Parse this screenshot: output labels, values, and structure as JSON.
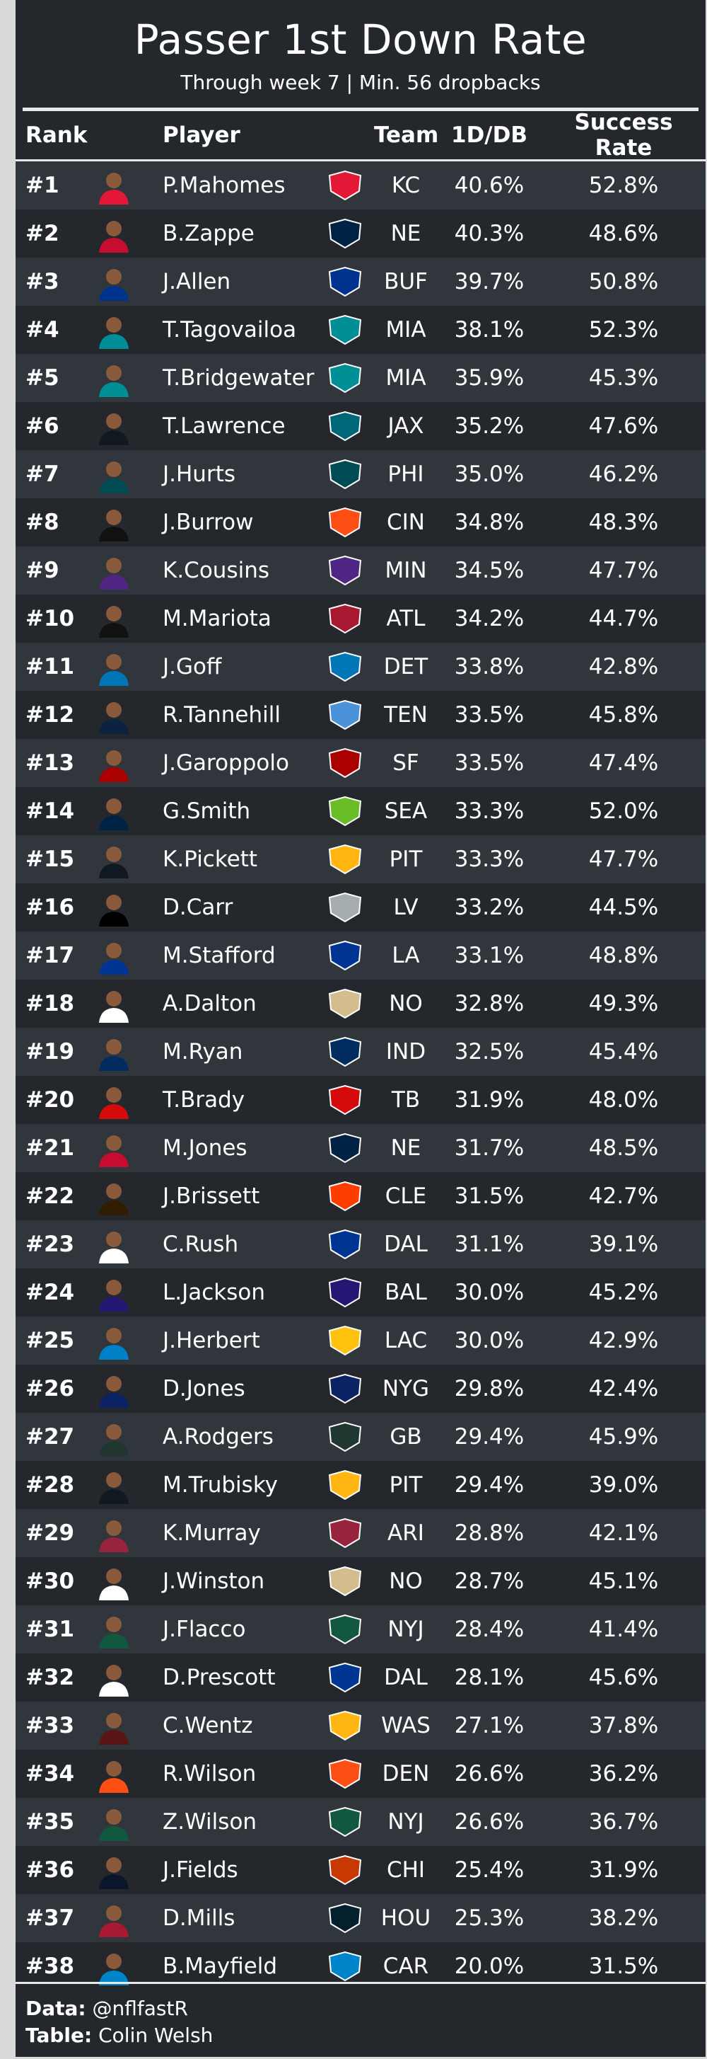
{
  "title": "Passer 1st Down Rate",
  "subtitle": "Through week 7 | Min. 56 dropbacks",
  "columns": {
    "rank": "Rank",
    "player": "Player",
    "team": "Team",
    "fddb": "1D/DB",
    "sr": "Success Rate"
  },
  "footer": {
    "data_label": "Data:",
    "data_value": "@nflfastR",
    "table_label": "Table:",
    "table_value": "Colin Welsh"
  },
  "rows": [
    {
      "rank": "#1",
      "player": "P.Mahomes",
      "team": "KC",
      "fddb": "40.6%",
      "sr": "52.8%",
      "color": "#e31837",
      "jersey": "#e31837"
    },
    {
      "rank": "#2",
      "player": "B.Zappe",
      "team": "NE",
      "fddb": "40.3%",
      "sr": "48.6%",
      "color": "#002244",
      "jersey": "#c60c30"
    },
    {
      "rank": "#3",
      "player": "J.Allen",
      "team": "BUF",
      "fddb": "39.7%",
      "sr": "50.8%",
      "color": "#00338d",
      "jersey": "#00338d"
    },
    {
      "rank": "#4",
      "player": "T.Tagovailoa",
      "team": "MIA",
      "fddb": "38.1%",
      "sr": "52.3%",
      "color": "#008e97",
      "jersey": "#008e97"
    },
    {
      "rank": "#5",
      "player": "T.Bridgewater",
      "team": "MIA",
      "fddb": "35.9%",
      "sr": "45.3%",
      "color": "#008e97",
      "jersey": "#008e97"
    },
    {
      "rank": "#6",
      "player": "T.Lawrence",
      "team": "JAX",
      "fddb": "35.2%",
      "sr": "47.6%",
      "color": "#006778",
      "jersey": "#101820"
    },
    {
      "rank": "#7",
      "player": "J.Hurts",
      "team": "PHI",
      "fddb": "35.0%",
      "sr": "46.2%",
      "color": "#004c54",
      "jersey": "#004c54"
    },
    {
      "rank": "#8",
      "player": "J.Burrow",
      "team": "CIN",
      "fddb": "34.8%",
      "sr": "48.3%",
      "color": "#fb4f14",
      "jersey": "#111111"
    },
    {
      "rank": "#9",
      "player": "K.Cousins",
      "team": "MIN",
      "fddb": "34.5%",
      "sr": "47.7%",
      "color": "#4f2683",
      "jersey": "#4f2683"
    },
    {
      "rank": "#10",
      "player": "M.Mariota",
      "team": "ATL",
      "fddb": "34.2%",
      "sr": "44.7%",
      "color": "#a71930",
      "jersey": "#111111"
    },
    {
      "rank": "#11",
      "player": "J.Goff",
      "team": "DET",
      "fddb": "33.8%",
      "sr": "42.8%",
      "color": "#0076b6",
      "jersey": "#0076b6"
    },
    {
      "rank": "#12",
      "player": "R.Tannehill",
      "team": "TEN",
      "fddb": "33.5%",
      "sr": "45.8%",
      "color": "#4b92db",
      "jersey": "#0c2340"
    },
    {
      "rank": "#13",
      "player": "J.Garoppolo",
      "team": "SF",
      "fddb": "33.5%",
      "sr": "47.4%",
      "color": "#aa0000",
      "jersey": "#aa0000"
    },
    {
      "rank": "#14",
      "player": "G.Smith",
      "team": "SEA",
      "fddb": "33.3%",
      "sr": "52.0%",
      "color": "#69be28",
      "jersey": "#002244"
    },
    {
      "rank": "#15",
      "player": "K.Pickett",
      "team": "PIT",
      "fddb": "33.3%",
      "sr": "47.7%",
      "color": "#ffb612",
      "jersey": "#101820"
    },
    {
      "rank": "#16",
      "player": "D.Carr",
      "team": "LV",
      "fddb": "33.2%",
      "sr": "44.5%",
      "color": "#a5acaf",
      "jersey": "#000000"
    },
    {
      "rank": "#17",
      "player": "M.Stafford",
      "team": "LA",
      "fddb": "33.1%",
      "sr": "48.8%",
      "color": "#003594",
      "jersey": "#003594"
    },
    {
      "rank": "#18",
      "player": "A.Dalton",
      "team": "NO",
      "fddb": "32.8%",
      "sr": "49.3%",
      "color": "#d3bc8d",
      "jersey": "#ffffff"
    },
    {
      "rank": "#19",
      "player": "M.Ryan",
      "team": "IND",
      "fddb": "32.5%",
      "sr": "45.4%",
      "color": "#002c5f",
      "jersey": "#002c5f"
    },
    {
      "rank": "#20",
      "player": "T.Brady",
      "team": "TB",
      "fddb": "31.9%",
      "sr": "48.0%",
      "color": "#d50a0a",
      "jersey": "#d50a0a"
    },
    {
      "rank": "#21",
      "player": "M.Jones",
      "team": "NE",
      "fddb": "31.7%",
      "sr": "48.5%",
      "color": "#002244",
      "jersey": "#c60c30"
    },
    {
      "rank": "#22",
      "player": "J.Brissett",
      "team": "CLE",
      "fddb": "31.5%",
      "sr": "42.7%",
      "color": "#ff3c00",
      "jersey": "#311d00"
    },
    {
      "rank": "#23",
      "player": "C.Rush",
      "team": "DAL",
      "fddb": "31.1%",
      "sr": "39.1%",
      "color": "#003594",
      "jersey": "#ffffff"
    },
    {
      "rank": "#24",
      "player": "L.Jackson",
      "team": "BAL",
      "fddb": "30.0%",
      "sr": "45.2%",
      "color": "#241773",
      "jersey": "#241773"
    },
    {
      "rank": "#25",
      "player": "J.Herbert",
      "team": "LAC",
      "fddb": "30.0%",
      "sr": "42.9%",
      "color": "#ffc20e",
      "jersey": "#0080c6"
    },
    {
      "rank": "#26",
      "player": "D.Jones",
      "team": "NYG",
      "fddb": "29.8%",
      "sr": "42.4%",
      "color": "#0b2265",
      "jersey": "#0b2265"
    },
    {
      "rank": "#27",
      "player": "A.Rodgers",
      "team": "GB",
      "fddb": "29.4%",
      "sr": "45.9%",
      "color": "#203731",
      "jersey": "#203731"
    },
    {
      "rank": "#28",
      "player": "M.Trubisky",
      "team": "PIT",
      "fddb": "29.4%",
      "sr": "39.0%",
      "color": "#ffb612",
      "jersey": "#101820"
    },
    {
      "rank": "#29",
      "player": "K.Murray",
      "team": "ARI",
      "fddb": "28.8%",
      "sr": "42.1%",
      "color": "#97233f",
      "jersey": "#97233f"
    },
    {
      "rank": "#30",
      "player": "J.Winston",
      "team": "NO",
      "fddb": "28.7%",
      "sr": "45.1%",
      "color": "#d3bc8d",
      "jersey": "#ffffff"
    },
    {
      "rank": "#31",
      "player": "J.Flacco",
      "team": "NYJ",
      "fddb": "28.4%",
      "sr": "41.4%",
      "color": "#125740",
      "jersey": "#125740"
    },
    {
      "rank": "#32",
      "player": "D.Prescott",
      "team": "DAL",
      "fddb": "28.1%",
      "sr": "45.6%",
      "color": "#003594",
      "jersey": "#ffffff"
    },
    {
      "rank": "#33",
      "player": "C.Wentz",
      "team": "WAS",
      "fddb": "27.1%",
      "sr": "37.8%",
      "color": "#ffb612",
      "jersey": "#5a1414"
    },
    {
      "rank": "#34",
      "player": "R.Wilson",
      "team": "DEN",
      "fddb": "26.6%",
      "sr": "36.2%",
      "color": "#fb4f14",
      "jersey": "#fb4f14"
    },
    {
      "rank": "#35",
      "player": "Z.Wilson",
      "team": "NYJ",
      "fddb": "26.6%",
      "sr": "36.7%",
      "color": "#125740",
      "jersey": "#125740"
    },
    {
      "rank": "#36",
      "player": "J.Fields",
      "team": "CHI",
      "fddb": "25.4%",
      "sr": "31.9%",
      "color": "#c83803",
      "jersey": "#0b162a"
    },
    {
      "rank": "#37",
      "player": "D.Mills",
      "team": "HOU",
      "fddb": "25.3%",
      "sr": "38.2%",
      "color": "#03202f",
      "jersey": "#a71930"
    },
    {
      "rank": "#38",
      "player": "B.Mayfield",
      "team": "CAR",
      "fddb": "20.0%",
      "sr": "31.5%",
      "color": "#0085ca",
      "jersey": "#0085ca"
    }
  ]
}
